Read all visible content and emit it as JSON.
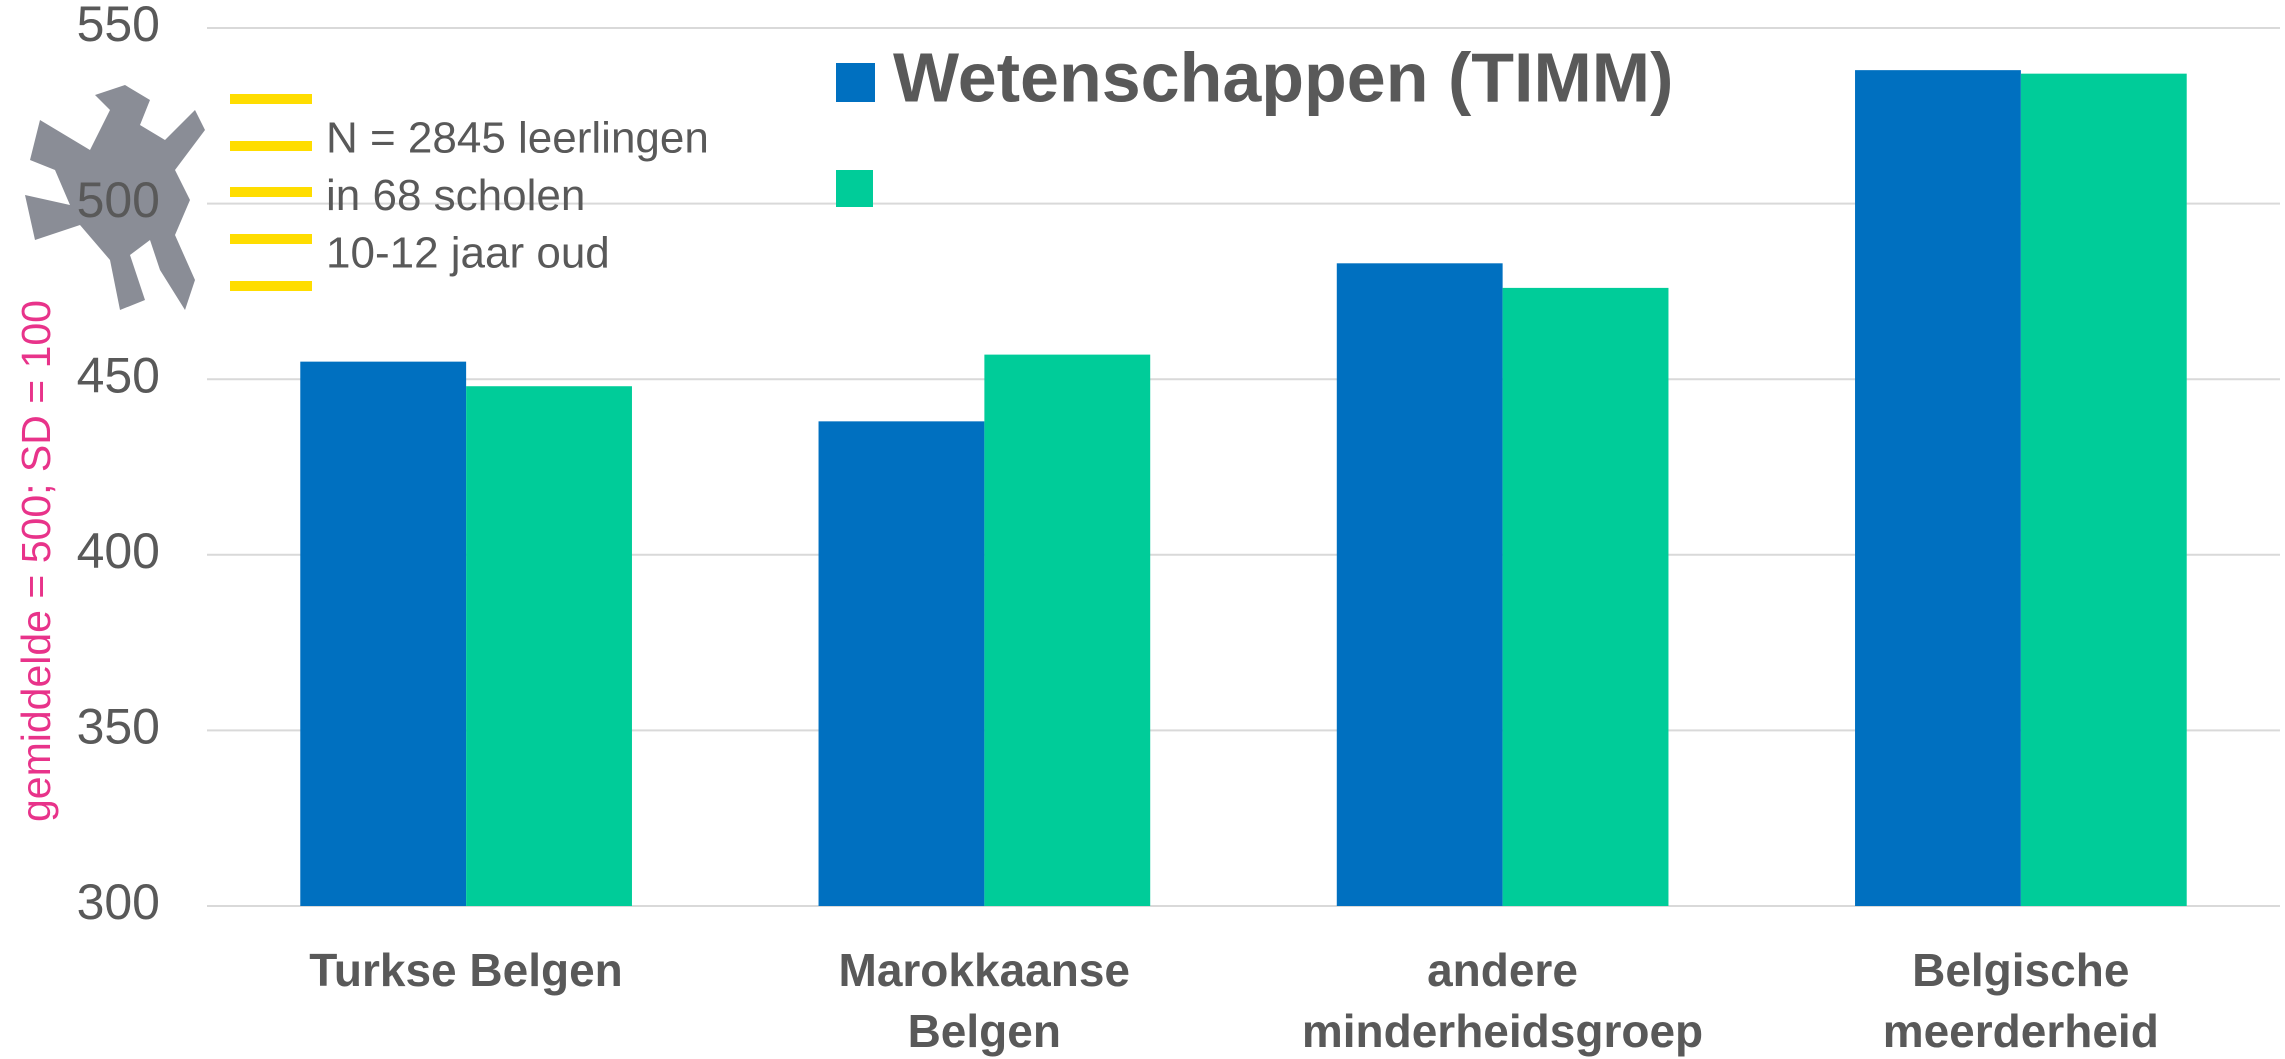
{
  "chart_data": {
    "type": "bar",
    "title": "Wetenschappen (TIMM)",
    "y_label": "gemiddelde = 500; SD = 100",
    "annotations": [
      "N = 2845 leerlingen",
      "in 68 scholen",
      "10-12 jaar oud"
    ],
    "categories": [
      "Turkse Belgen",
      "Marokkaanse\nBelgen",
      "andere\nminderheidsgroep",
      "Belgische\nmeerderheid"
    ],
    "series": [
      {
        "name": "Wetenschappen (TIMM)",
        "color": "#0070c0",
        "values": [
          455,
          438,
          483,
          538
        ]
      },
      {
        "color": "#00cc99",
        "values": [
          448,
          457,
          476,
          537
        ]
      }
    ],
    "ylim": [
      300,
      550
    ],
    "yticks": [
      300,
      350,
      400,
      450,
      500,
      550
    ],
    "grid": true
  }
}
